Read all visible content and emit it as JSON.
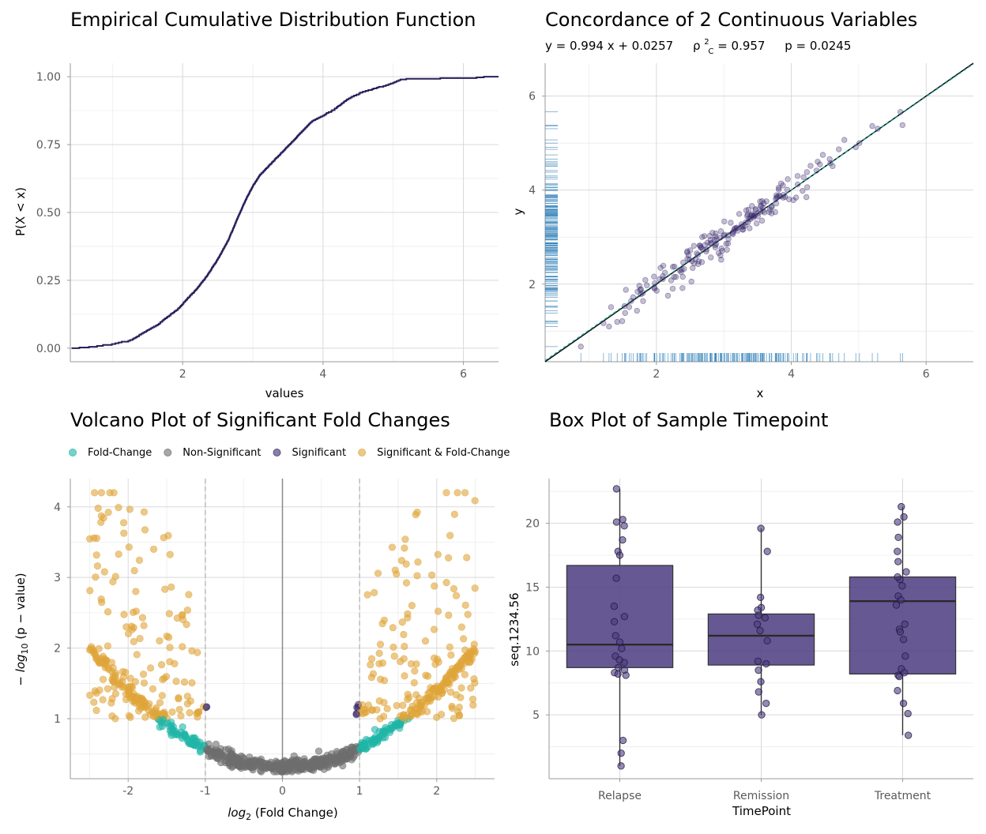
{
  "colors": {
    "ecdf_line": "#2b1f5c",
    "rug": "#2e7fb8",
    "concord_point": "#3b2a6e",
    "identity_line": "#000000",
    "fit_line": "#1a9e8f",
    "fold_change": "#1fb5a6",
    "non_significant": "#6e6e6e",
    "significant": "#3b2a6e",
    "sig_fold": "#e0a53a",
    "box_fill": "#4b3b80"
  },
  "chart_data": [
    {
      "type": "line",
      "title": "Empirical Cumulative Distribution Function",
      "xlabel": "values",
      "ylabel": "P(X < x)",
      "xlim": [
        0.4,
        6.5
      ],
      "ylim": [
        -0.05,
        1.05
      ],
      "x_ticks": [
        2,
        4,
        6
      ],
      "y_ticks": [
        0.0,
        0.25,
        0.5,
        0.75,
        1.0
      ],
      "y_tick_labels": [
        "0.00",
        "0.25",
        "0.50",
        "0.75",
        "1.00"
      ],
      "x_tick_labels": [
        "2",
        "4",
        "6"
      ],
      "series": [
        {
          "name": "ecdf",
          "x": [
            0.4,
            0.58,
            0.95,
            1.25,
            1.45,
            1.65,
            1.8,
            1.95,
            2.05,
            2.2,
            2.35,
            2.5,
            2.65,
            2.78,
            2.9,
            3.0,
            3.1,
            3.25,
            3.4,
            3.55,
            3.7,
            3.85,
            4.0,
            4.15,
            4.35,
            4.55,
            4.75,
            4.95,
            5.1,
            5.2,
            6.0,
            6.25,
            6.5
          ],
          "y": [
            0.0,
            0.005,
            0.015,
            0.03,
            0.06,
            0.09,
            0.12,
            0.15,
            0.18,
            0.22,
            0.27,
            0.33,
            0.4,
            0.48,
            0.55,
            0.6,
            0.64,
            0.68,
            0.72,
            0.76,
            0.8,
            0.84,
            0.86,
            0.88,
            0.92,
            0.945,
            0.96,
            0.975,
            0.99,
            0.995,
            0.995,
            1.0,
            1.0
          ]
        }
      ]
    },
    {
      "type": "scatter",
      "title": "Concordance of 2 Continuous Variables",
      "subtitle": {
        "equation": "y = 0.994 x + 0.0257",
        "rho_symbol": "ρ",
        "rho_sup": "2",
        "rho_sub": "C",
        "rho_value": " = 0.957",
        "p_value": "p = 0.0245"
      },
      "xlabel": "x",
      "ylabel": "y",
      "xlim": [
        0.35,
        6.7
      ],
      "ylim": [
        0.35,
        6.7
      ],
      "x_ticks": [
        2,
        4,
        6
      ],
      "y_ticks": [
        2,
        4,
        6
      ],
      "x_tick_labels": [
        "2",
        "4",
        "6"
      ],
      "y_tick_labels": [
        "2",
        "4",
        "6"
      ],
      "fit": {
        "slope": 0.994,
        "intercept": 0.0257
      },
      "generated_points": {
        "count": 200,
        "x_mean": 3.0,
        "x_sd": 0.85,
        "noise_sd": 0.17,
        "seed": 7
      }
    },
    {
      "type": "scatter",
      "title": "Volcano Plot of Significant Fold Changes",
      "xlabel_base": "log",
      "xlabel_sub": "2",
      "xlabel_rest": " (Fold Change)",
      "ylabel_prefix": "− log",
      "ylabel_sub": "10",
      "ylabel_rest": " (p − value)",
      "xlim": [
        -2.75,
        2.75
      ],
      "ylim": [
        0.15,
        4.4
      ],
      "x_ticks": [
        -2,
        -1,
        0,
        1,
        2
      ],
      "x_tick_labels": [
        "-2",
        "-1",
        "0",
        "1",
        "2"
      ],
      "y_ticks": [
        1,
        2,
        3,
        4
      ],
      "y_tick_labels": [
        "1",
        "2",
        "3",
        "4"
      ],
      "fc_threshold": 1,
      "p_threshold_logp": 1.0,
      "legend": [
        "Fold-Change",
        "Non-Significant",
        "Significant",
        "Significant & Fold-Change"
      ],
      "generated_points": {
        "count": 1000,
        "x_range": [
          -2.5,
          2.5
        ],
        "seed": 11
      }
    },
    {
      "type": "box",
      "title": "Box Plot of Sample Timepoint",
      "xlabel": "TimePoint",
      "ylabel": "seq.1234.56",
      "ylim": [
        0,
        23.5
      ],
      "y_ticks": [
        5,
        10,
        15,
        20
      ],
      "y_tick_labels": [
        "5",
        "10",
        "15",
        "20"
      ],
      "categories": [
        "Relapse",
        "Remission",
        "Treatment"
      ],
      "boxes": [
        {
          "min": 1.0,
          "q1": 8.7,
          "median": 10.5,
          "q3": 16.7,
          "max": 22.7
        },
        {
          "min": 5.0,
          "q1": 8.9,
          "median": 11.2,
          "q3": 12.9,
          "max": 19.6
        },
        {
          "min": 3.4,
          "q1": 8.2,
          "median": 13.9,
          "q3": 15.8,
          "max": 21.3
        }
      ],
      "points": [
        [
          22.7,
          20.3,
          20.1,
          19.8,
          18.7,
          17.8,
          17.5,
          15.7,
          13.5,
          12.7,
          12.3,
          11.2,
          10.7,
          10.2,
          9.6,
          9.1,
          9.3,
          8.7,
          8.5,
          8.3,
          8.1,
          8.2,
          3.0,
          2.0,
          1.0
        ],
        [
          19.6,
          17.8,
          14.2,
          13.4,
          13.2,
          12.8,
          12.6,
          12.1,
          11.6,
          10.8,
          9.2,
          9.0,
          8.5,
          7.6,
          6.8,
          5.9,
          5.0
        ],
        [
          21.3,
          20.5,
          20.1,
          18.9,
          17.8,
          17.0,
          16.2,
          15.6,
          15.8,
          15.1,
          14.3,
          14.0,
          13.6,
          12.1,
          11.7,
          11.5,
          10.9,
          9.6,
          8.6,
          8.3,
          8.1,
          8.0,
          6.9,
          5.9,
          5.1,
          3.4
        ]
      ]
    }
  ]
}
